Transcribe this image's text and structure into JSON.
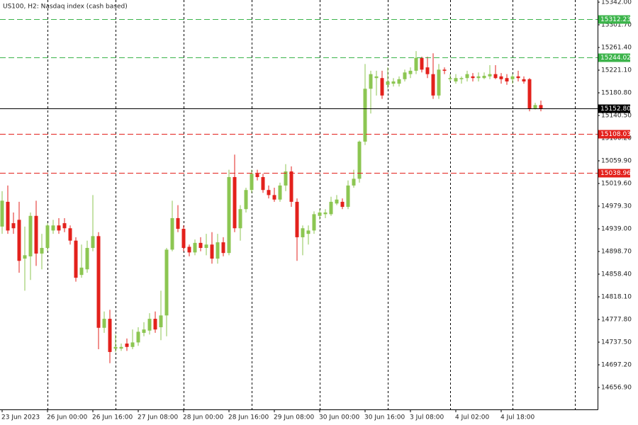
{
  "chart_data": {
    "type": "candlestick",
    "title": "US100, H2:  Nasdaq index (cash based)",
    "up_color": "#8cc652",
    "down_color": "#e3211c",
    "open": [
      14943,
      14987,
      14949,
      14955,
      14886,
      14890,
      14962,
      14895,
      14905,
      14936,
      14945,
      14949,
      14940,
      14918,
      14857,
      14867,
      14905,
      14926,
      14763,
      14779,
      14726,
      14726,
      14735,
      14729,
      14737,
      14754,
      14758,
      14779,
      14764,
      14785,
      14902,
      14958,
      14939,
      14907,
      14897,
      14914,
      14905,
      14911,
      14886,
      14915,
      14896,
      15031,
      14940,
      14974,
      15008,
      15037,
      15031,
      15008,
      14999,
      14991,
      15016,
      15041,
      14987,
      14924,
      14930,
      14936,
      14962,
      14965,
      14965,
      14984,
      14987,
      14978,
      15016,
      15028,
      15094,
      15188,
      15207,
      15207,
      15195,
      15197,
      15197,
      15205,
      15214,
      15220,
      15243,
      15226,
      15214,
      15176,
      15222,
      15205,
      15201,
      15205,
      15207,
      15210,
      15207,
      15207,
      15210,
      15214,
      15210,
      15207,
      15205,
      15210,
      15205,
      15205,
      15153,
      15159
    ],
    "high": [
      15006,
      15016,
      14968,
      14987,
      14943,
      14968,
      14989,
      14930,
      14949,
      14955,
      14958,
      14958,
      14945,
      14924,
      14911,
      14918,
      14999,
      14933,
      14792,
      14795,
      14751,
      14735,
      14744,
      14760,
      14764,
      14773,
      14789,
      14792,
      14829,
      14905,
      14989,
      14981,
      14945,
      14911,
      14920,
      14924,
      14930,
      14933,
      14930,
      14924,
      15044,
      15071,
      14981,
      15012,
      15044,
      15044,
      15037,
      15016,
      15012,
      15021,
      15054,
      15050,
      14993,
      14945,
      14945,
      14970,
      14974,
      14974,
      14996,
      14999,
      14993,
      15025,
      15044,
      15096,
      15232,
      15220,
      15220,
      15220,
      15226,
      15207,
      15210,
      15222,
      15226,
      15255,
      15245,
      15245,
      15251,
      15232,
      15226,
      15214,
      15214,
      15210,
      15220,
      15216,
      15217,
      15217,
      15230,
      15230,
      15216,
      15214,
      15214,
      15220,
      15210,
      15207,
      15163,
      15167
    ],
    "low": [
      14930,
      14930,
      14930,
      14861,
      14829,
      14848,
      14873,
      14867,
      14899,
      14930,
      14930,
      14933,
      14911,
      14845,
      14852,
      14861,
      14899,
      14725,
      14754,
      14700,
      14720,
      14722,
      14722,
      14725,
      14731,
      14748,
      14751,
      14754,
      14741,
      14748,
      14899,
      14933,
      14899,
      14890,
      14892,
      14899,
      14892,
      14877,
      14877,
      14890,
      14892,
      14933,
      14918,
      14968,
      15003,
      15025,
      15003,
      14993,
      14987,
      14987,
      15006,
      14978,
      14882,
      14892,
      14911,
      14930,
      14955,
      14958,
      14962,
      14981,
      14974,
      14974,
      15012,
      15021,
      15088,
      15144,
      15176,
      15170,
      15188,
      15192,
      15192,
      15201,
      15207,
      15214,
      15217,
      15207,
      15170,
      15170,
      15214,
      15201,
      15197,
      15197,
      15201,
      15201,
      15201,
      15205,
      15205,
      15205,
      15197,
      15195,
      15197,
      15201,
      15197,
      15148,
      15151,
      15148
    ],
    "close": [
      14989,
      14936,
      14940,
      14882,
      14892,
      14962,
      14895,
      14905,
      14945,
      14945,
      14936,
      14940,
      14918,
      14852,
      14870,
      14905,
      14926,
      14763,
      14779,
      14720,
      14729,
      14729,
      14729,
      14737,
      14756,
      14760,
      14779,
      14760,
      14785,
      14902,
      14958,
      14939,
      14905,
      14897,
      14914,
      14905,
      14911,
      14886,
      14915,
      14896,
      15031,
      14940,
      14974,
      15008,
      15037,
      15031,
      15008,
      14999,
      14991,
      15016,
      15041,
      14987,
      14924,
      14940,
      14936,
      14965,
      14968,
      14968,
      14987,
      14991,
      14978,
      15016,
      15028,
      15094,
      15188,
      15214,
      15210,
      15176,
      15201,
      15201,
      15205,
      15217,
      15220,
      15243,
      15222,
      15214,
      15176,
      15222,
      15220,
      15207,
      15207,
      15207,
      15214,
      15207,
      15210,
      15211,
      15214,
      15207,
      15205,
      15201,
      15210,
      15207,
      15201,
      15153,
      15159,
      15152.8
    ],
    "xlim": [
      -0.375,
      105
    ],
    "xticks": [
      {
        "value": 0,
        "label": "23 Jun 2023"
      },
      {
        "value": 8,
        "label": "26 Jun 00:00"
      },
      {
        "value": 16,
        "label": "26 Jun 16:00"
      },
      {
        "value": 24,
        "label": "27 Jun 08:00"
      },
      {
        "value": 32,
        "label": "28 Jun 00:00"
      },
      {
        "value": 40,
        "label": "28 Jun 16:00"
      },
      {
        "value": 48,
        "label": "29 Jun 08:00"
      },
      {
        "value": 56,
        "label": "30 Jun 00:00"
      },
      {
        "value": 64,
        "label": "30 Jun 16:00"
      },
      {
        "value": 72,
        "label": "3 Jul 08:00"
      },
      {
        "value": 80,
        "label": "4 Jul 02:00"
      },
      {
        "value": 88,
        "label": "4 Jul 18:00"
      }
    ],
    "xgrid": [
      8,
      20,
      32,
      44,
      56,
      68,
      79,
      90,
      101
    ],
    "ylim": [
      14617.9,
      15345.8
    ],
    "yticks": [
      {
        "value": 15342,
        "label": "15342.00"
      },
      {
        "value": 15301.7,
        "label": "15301.70"
      },
      {
        "value": 15261.4,
        "label": "15261.40"
      },
      {
        "value": 15221.1,
        "label": "15221.10"
      },
      {
        "value": 15180.8,
        "label": "15180.80"
      },
      {
        "value": 15140.5,
        "label": "15140.50"
      },
      {
        "value": 15100.2,
        "label": "15100.20"
      },
      {
        "value": 15059.9,
        "label": "15059.90"
      },
      {
        "value": 15019.6,
        "label": "15019.60"
      },
      {
        "value": 14979.3,
        "label": "14979.30"
      },
      {
        "value": 14939,
        "label": "14939.00"
      },
      {
        "value": 14898.7,
        "label": "14898.70"
      },
      {
        "value": 14858.4,
        "label": "14858.40"
      },
      {
        "value": 14818.1,
        "label": "14818.10"
      },
      {
        "value": 14777.8,
        "label": "14777.80"
      },
      {
        "value": 14737.5,
        "label": "14737.50"
      },
      {
        "value": 14697.2,
        "label": "14697.20"
      },
      {
        "value": 14656.9,
        "label": "14656.90"
      }
    ],
    "levels": [
      {
        "value": 15312.23,
        "label": "15312.23",
        "color": "#3cb44b",
        "style": "dashed"
      },
      {
        "value": 15244.02,
        "label": "15244.02",
        "color": "#3cb44b",
        "style": "dashed"
      },
      {
        "value": 15152.8,
        "label": "15152.80",
        "color": "#000000",
        "style": "solid"
      },
      {
        "value": 15108.03,
        "label": "15108.03",
        "color": "#e3211c",
        "style": "dashed"
      },
      {
        "value": 15038.96,
        "label": "15038.96",
        "color": "#e3211c",
        "style": "dashed"
      }
    ]
  }
}
